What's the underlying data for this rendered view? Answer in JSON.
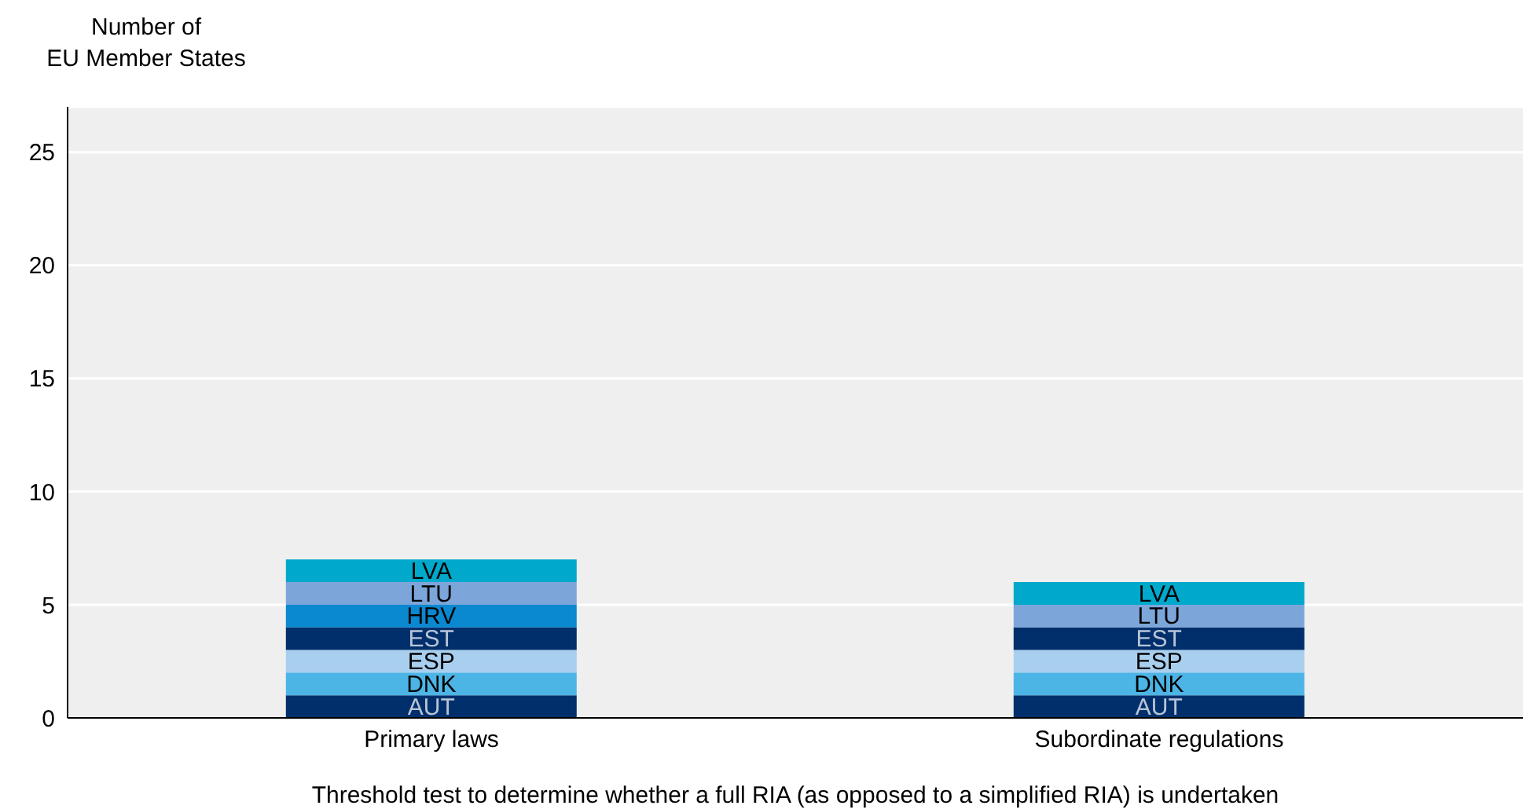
{
  "chart_data": {
    "type": "bar",
    "stacked": true,
    "ylabel": "Number of\nEU Member States",
    "xlabel": "Threshold test to determine whether a full RIA (as opposed to a simplified RIA) is undertaken",
    "categories": [
      "Primary laws",
      "Subordinate regulations"
    ],
    "series": [
      {
        "name": "AUT",
        "color": "#002f6c",
        "values": [
          1,
          1
        ]
      },
      {
        "name": "DNK",
        "color": "#4cb5e6",
        "values": [
          1,
          1
        ]
      },
      {
        "name": "ESP",
        "color": "#a9cfee",
        "values": [
          1,
          1
        ]
      },
      {
        "name": "EST",
        "color": "#002f6c",
        "values": [
          1,
          1
        ]
      },
      {
        "name": "HRV",
        "color": "#0a88d0",
        "values": [
          1,
          null
        ]
      },
      {
        "name": "LTU",
        "color": "#7ca6da",
        "values": [
          1,
          1
        ]
      },
      {
        "name": "LVA",
        "color": "#00a9cc",
        "values": [
          1,
          1
        ]
      }
    ],
    "ylim": [
      0,
      27
    ],
    "yticks": [
      0,
      5,
      10,
      15,
      20,
      25
    ],
    "grid": "y",
    "legend": false
  }
}
